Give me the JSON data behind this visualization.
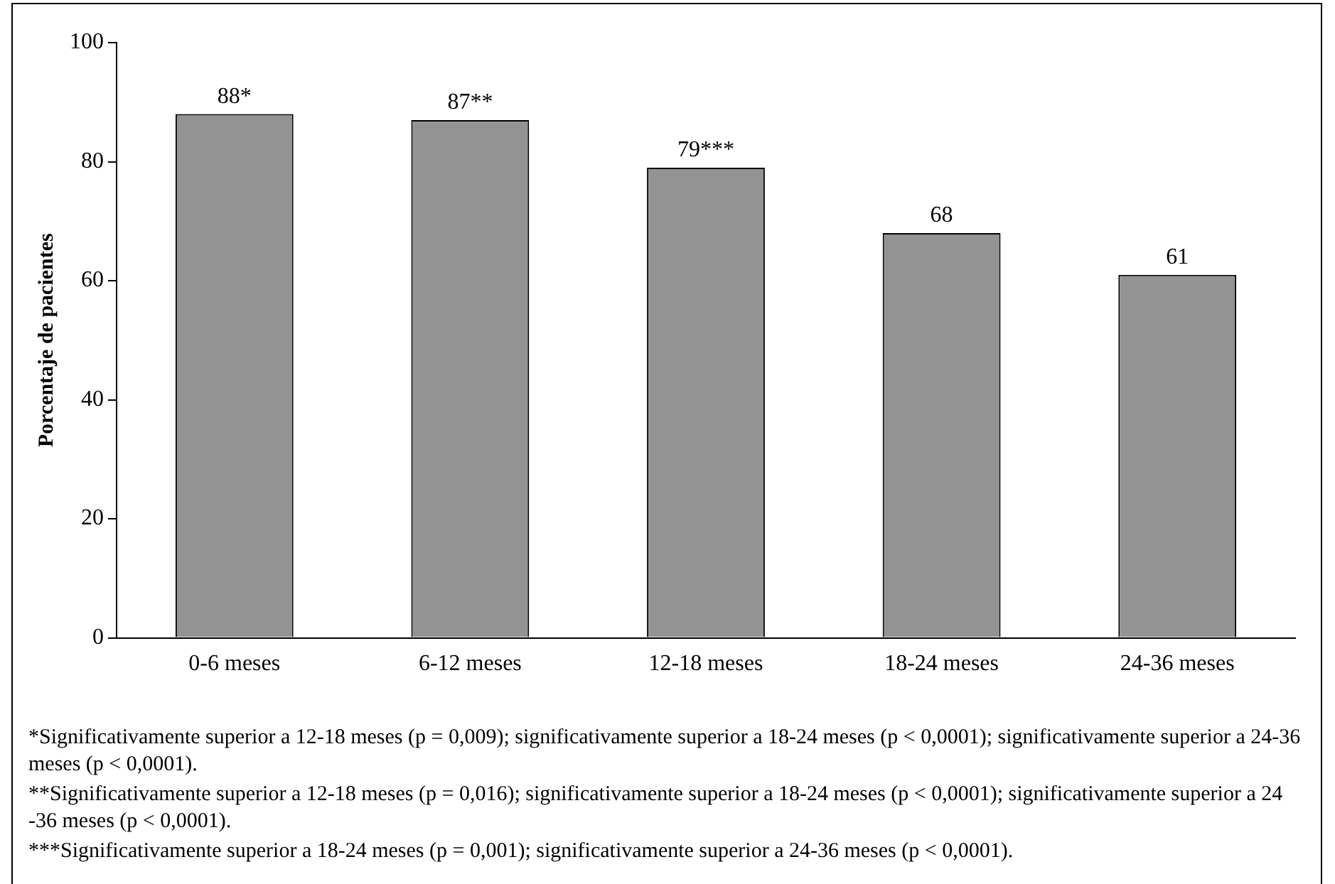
{
  "chart_data": {
    "type": "bar",
    "ylabel": "Porcentaje de pacientes",
    "categories": [
      "0-6 meses",
      "6-12 meses",
      "12-18 meses",
      "18-24 meses",
      "24-36 meses"
    ],
    "values": [
      88,
      87,
      79,
      68,
      61
    ],
    "value_labels": [
      "88*",
      "87**",
      "79***",
      "68",
      "61"
    ],
    "color": "#939393",
    "ylim": [
      0,
      100
    ],
    "yticks": [
      0,
      20,
      40,
      60,
      80,
      100
    ],
    "grid": false,
    "legend": false,
    "annotations": [
      "*Significativamente superior a 12-18 meses (p = 0,009); significativamente superior a 18-24 meses (p < 0,0001); significativamente superior a 24-36 meses (p < 0,0001).",
      "**Significativamente superior a 12-18 meses (p = 0,016); significativamente superior a 18-24 meses (p < 0,0001); significativamente superior a 24 -36 meses (p < 0,0001).",
      "***Significativamente superior a 18-24 meses (p = 0,001); significativamente superior a 24-36 meses (p < 0,0001)."
    ]
  }
}
